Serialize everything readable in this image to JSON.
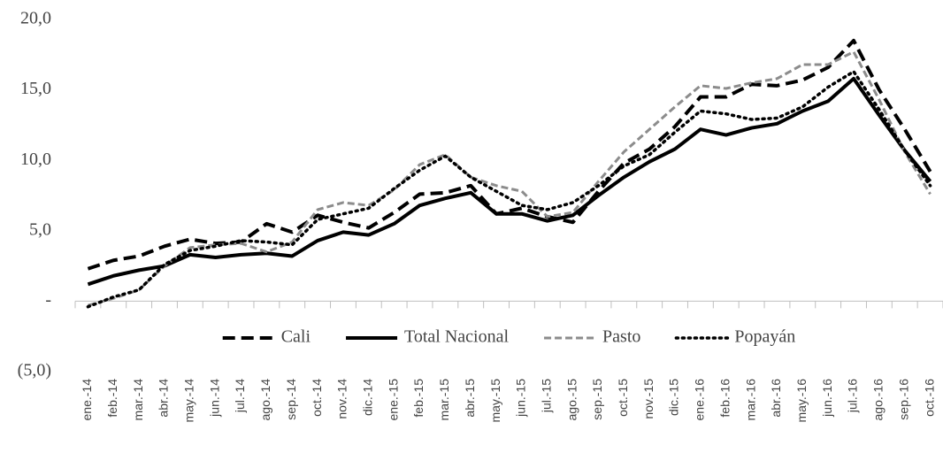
{
  "chart_data": {
    "type": "line",
    "categories": [
      "ene.-14",
      "feb.-14",
      "mar.-14",
      "abr.-14",
      "may.-14",
      "jun.-14",
      "jul.-14",
      "ago.-14",
      "sep.-14",
      "oct.-14",
      "nov.-14",
      "dic.-14",
      "ene.-15",
      "feb.-15",
      "mar.-15",
      "abr.-15",
      "may.-15",
      "jun.-15",
      "jul.-15",
      "ago.-15",
      "sep.-15",
      "oct.-15",
      "nov.-15",
      "dic.-15",
      "ene.-16",
      "feb.-16",
      "mar.-16",
      "abr.-16",
      "may.-16",
      "jun.-16",
      "jul.-16",
      "ago.-16",
      "sep.-16",
      "oct.-16"
    ],
    "series": [
      {
        "name": "Cali",
        "color": "#000000",
        "style": "dashed",
        "values": [
          2.3,
          2.9,
          3.2,
          3.9,
          4.4,
          4.1,
          4.2,
          5.5,
          4.9,
          6.1,
          5.6,
          5.2,
          6.3,
          7.6,
          7.7,
          8.2,
          6.2,
          6.6,
          6.0,
          5.6,
          7.8,
          9.8,
          10.8,
          12.4,
          14.5,
          14.5,
          15.4,
          15.3,
          15.7,
          16.6,
          18.5,
          15.0,
          12.2,
          9.2
        ]
      },
      {
        "name": "Total Nacional",
        "color": "#000000",
        "style": "solid",
        "values": [
          1.2,
          1.8,
          2.2,
          2.5,
          3.3,
          3.1,
          3.3,
          3.4,
          3.2,
          4.3,
          4.9,
          4.7,
          5.5,
          6.8,
          7.3,
          7.7,
          6.2,
          6.2,
          5.7,
          6.1,
          7.5,
          8.8,
          9.9,
          10.8,
          12.2,
          11.8,
          12.3,
          12.6,
          13.5,
          14.2,
          15.8,
          13.2,
          10.7,
          8.5
        ]
      },
      {
        "name": "Pasto",
        "color": "#8c8c8c",
        "style": "dashed",
        "values": [
          -0.3,
          0.2,
          0.8,
          2.5,
          3.8,
          4.0,
          4.1,
          3.5,
          4.2,
          6.5,
          7.0,
          6.8,
          7.9,
          9.7,
          10.4,
          8.8,
          8.2,
          7.8,
          6.0,
          6.3,
          8.5,
          10.6,
          12.2,
          13.8,
          15.3,
          15.1,
          15.5,
          15.8,
          16.8,
          16.8,
          17.7,
          14.3,
          10.6,
          7.6
        ]
      },
      {
        "name": "Popayán",
        "color": "#000000",
        "style": "dotted",
        "values": [
          -0.4,
          0.3,
          0.8,
          2.6,
          3.6,
          3.9,
          4.3,
          4.2,
          4.0,
          5.8,
          6.2,
          6.6,
          8.0,
          9.3,
          10.3,
          8.8,
          7.8,
          6.8,
          6.5,
          7.0,
          8.2,
          9.6,
          10.4,
          12.0,
          13.5,
          13.3,
          12.9,
          13.0,
          13.8,
          15.2,
          16.3,
          13.6,
          10.7,
          8.2
        ]
      }
    ],
    "ylim": [
      -5,
      20
    ],
    "yticks": [
      {
        "value": -5,
        "label": "(5,0)"
      },
      {
        "value": 0,
        "label": "-"
      },
      {
        "value": 5,
        "label": "5,0"
      },
      {
        "value": 10,
        "label": "10,0"
      },
      {
        "value": 15,
        "label": "15,0"
      },
      {
        "value": 20,
        "label": "20,0"
      }
    ],
    "grid": false,
    "legend": "bottom"
  }
}
